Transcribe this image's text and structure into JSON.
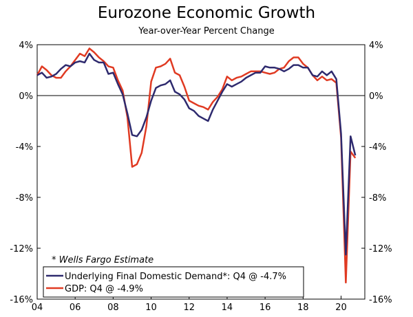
{
  "chart_data": {
    "type": "line",
    "title": "Eurozone Economic Growth",
    "subtitle": "Year-over-Year Percent Change",
    "xlim": [
      2004,
      2021.25
    ],
    "ylim": [
      -16,
      4
    ],
    "y_ticks": [
      4,
      0,
      -4,
      -8,
      -12,
      -16
    ],
    "y_tick_labels": [
      "4%",
      "0%",
      "-4%",
      "-8%",
      "-12%",
      "-16%"
    ],
    "x_ticks": [
      2004,
      2006,
      2008,
      2010,
      2012,
      2014,
      2016,
      2018,
      2020
    ],
    "x_tick_labels": [
      "04",
      "06",
      "08",
      "10",
      "12",
      "14",
      "16",
      "18",
      "20"
    ],
    "annotation": "* Wells Fargo Estimate",
    "legend_position": "bottom-left",
    "series": [
      {
        "name": "Underlying Final Domestic Demand*: Q4 @ -4.7%",
        "color": "#2e2a6e",
        "x": [
          2004.0,
          2004.25,
          2004.5,
          2004.75,
          2005.0,
          2005.25,
          2005.5,
          2005.75,
          2006.0,
          2006.25,
          2006.5,
          2006.75,
          2007.0,
          2007.25,
          2007.5,
          2007.75,
          2008.0,
          2008.25,
          2008.5,
          2008.75,
          2009.0,
          2009.25,
          2009.5,
          2009.75,
          2010.0,
          2010.25,
          2010.5,
          2010.75,
          2011.0,
          2011.25,
          2011.5,
          2011.75,
          2012.0,
          2012.25,
          2012.5,
          2012.75,
          2013.0,
          2013.25,
          2013.5,
          2013.75,
          2014.0,
          2014.25,
          2014.5,
          2014.75,
          2015.0,
          2015.25,
          2015.5,
          2015.75,
          2016.0,
          2016.25,
          2016.5,
          2016.75,
          2017.0,
          2017.25,
          2017.5,
          2017.75,
          2018.0,
          2018.25,
          2018.5,
          2018.75,
          2019.0,
          2019.25,
          2019.5,
          2019.75,
          2020.0,
          2020.25,
          2020.5,
          2020.75
        ],
        "values": [
          1.6,
          1.8,
          1.4,
          1.5,
          1.7,
          2.1,
          2.4,
          2.3,
          2.6,
          2.7,
          2.6,
          3.3,
          2.8,
          2.6,
          2.6,
          1.7,
          1.8,
          0.9,
          0.1,
          -1.4,
          -3.1,
          -3.2,
          -2.7,
          -1.7,
          -0.4,
          0.6,
          0.8,
          0.9,
          1.2,
          0.3,
          0.1,
          -0.3,
          -1.0,
          -1.2,
          -1.6,
          -1.8,
          -2.0,
          -1.1,
          -0.4,
          0.3,
          0.9,
          0.7,
          0.9,
          1.1,
          1.4,
          1.6,
          1.8,
          1.8,
          2.3,
          2.2,
          2.2,
          2.1,
          1.9,
          2.1,
          2.4,
          2.4,
          2.2,
          2.2,
          1.6,
          1.5,
          1.9,
          1.6,
          1.9,
          1.3,
          -3.0,
          -12.5,
          -3.2,
          -4.7
        ]
      },
      {
        "name": "GDP: Q4 @ -4.9%",
        "color": "#e03a22",
        "x": [
          2004.0,
          2004.25,
          2004.5,
          2004.75,
          2005.0,
          2005.25,
          2005.5,
          2005.75,
          2006.0,
          2006.25,
          2006.5,
          2006.75,
          2007.0,
          2007.25,
          2007.5,
          2007.75,
          2008.0,
          2008.25,
          2008.5,
          2008.75,
          2009.0,
          2009.25,
          2009.5,
          2009.75,
          2010.0,
          2010.25,
          2010.5,
          2010.75,
          2011.0,
          2011.25,
          2011.5,
          2011.75,
          2012.0,
          2012.25,
          2012.5,
          2012.75,
          2013.0,
          2013.25,
          2013.5,
          2013.75,
          2014.0,
          2014.25,
          2014.5,
          2014.75,
          2015.0,
          2015.25,
          2015.5,
          2015.75,
          2016.0,
          2016.25,
          2016.5,
          2016.75,
          2017.0,
          2017.25,
          2017.5,
          2017.75,
          2018.0,
          2018.25,
          2018.5,
          2018.75,
          2019.0,
          2019.25,
          2019.5,
          2019.75,
          2020.0,
          2020.25,
          2020.5,
          2020.75
        ],
        "values": [
          1.6,
          2.3,
          2.0,
          1.6,
          1.4,
          1.4,
          1.9,
          2.3,
          2.8,
          3.3,
          3.1,
          3.7,
          3.4,
          3.0,
          2.7,
          2.3,
          2.2,
          1.2,
          0.4,
          -1.7,
          -5.6,
          -5.4,
          -4.5,
          -2.4,
          1.1,
          2.2,
          2.3,
          2.5,
          2.9,
          1.8,
          1.6,
          0.7,
          -0.4,
          -0.6,
          -0.8,
          -0.9,
          -1.1,
          -0.5,
          -0.1,
          0.5,
          1.5,
          1.2,
          1.4,
          1.5,
          1.7,
          1.9,
          1.9,
          1.9,
          1.8,
          1.7,
          1.8,
          2.1,
          2.2,
          2.7,
          3.0,
          3.0,
          2.5,
          2.2,
          1.6,
          1.2,
          1.5,
          1.2,
          1.3,
          1.0,
          -3.3,
          -14.7,
          -4.4,
          -4.9
        ]
      }
    ]
  }
}
